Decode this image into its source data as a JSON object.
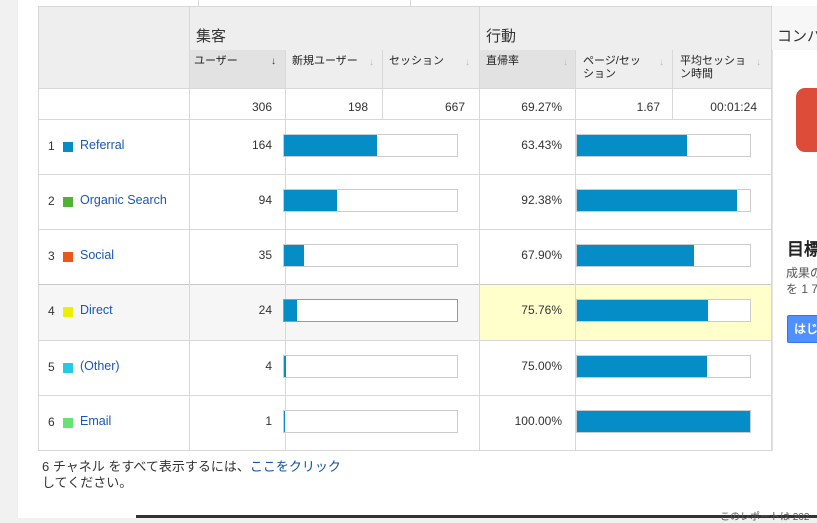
{
  "groups": {
    "acquisition": "集客",
    "behavior": "行動",
    "conversion": "コンバ"
  },
  "columns": [
    {
      "label": "ユーザー",
      "sorted": true
    },
    {
      "label": "新規ユーザー",
      "sorted": false
    },
    {
      "label": "セッション",
      "sorted": false
    },
    {
      "label": "直帰率",
      "sorted": false
    },
    {
      "label": "ページ/セッション",
      "sorted": false
    },
    {
      "label": "平均セッション時間",
      "sorted": false
    }
  ],
  "totals": {
    "users": "306",
    "new_users": "198",
    "sessions": "667",
    "bounce_rate": "69.27%",
    "pages_per_session": "1.67",
    "avg_duration": "00:01:24"
  },
  "rows": [
    {
      "index": "1",
      "channel": "Referral",
      "color": "#058dc7",
      "users": "164",
      "users_share": 0.536,
      "bounce_rate": "63.43%",
      "bounce_value": 0.6343,
      "highlighted": false
    },
    {
      "index": "2",
      "channel": "Organic Search",
      "color": "#50b432",
      "users": "94",
      "users_share": 0.307,
      "bounce_rate": "92.38%",
      "bounce_value": 0.9238,
      "highlighted": false
    },
    {
      "index": "3",
      "channel": "Social",
      "color": "#ed561b",
      "users": "35",
      "users_share": 0.114,
      "bounce_rate": "67.90%",
      "bounce_value": 0.679,
      "highlighted": false
    },
    {
      "index": "4",
      "channel": "Direct",
      "color": "#edef00",
      "users": "24",
      "users_share": 0.078,
      "bounce_rate": "75.76%",
      "bounce_value": 0.7576,
      "highlighted": true
    },
    {
      "index": "5",
      "channel": "(Other)",
      "color": "#24cbe5",
      "users": "4",
      "users_share": 0.013,
      "bounce_rate": "75.00%",
      "bounce_value": 0.75,
      "highlighted": false
    },
    {
      "index": "6",
      "channel": "Email",
      "color": "#64e572",
      "users": "1",
      "users_share": 0.003,
      "bounce_rate": "100.00%",
      "bounce_value": 1.0,
      "highlighted": false
    }
  ],
  "footer": {
    "prefix": "6 チャネル をすべて表示するには、",
    "link": "ここをクリック",
    "suffix": "してください。"
  },
  "side_panel": {
    "title": "目標",
    "text1": "成果の",
    "text2": "を 1 7",
    "button": "はじ"
  },
  "bottom_note": "このレポートは 202",
  "colors": {
    "bar": "#058dc7",
    "link": "#1a56b8",
    "highlight": "#ffffcc"
  }
}
